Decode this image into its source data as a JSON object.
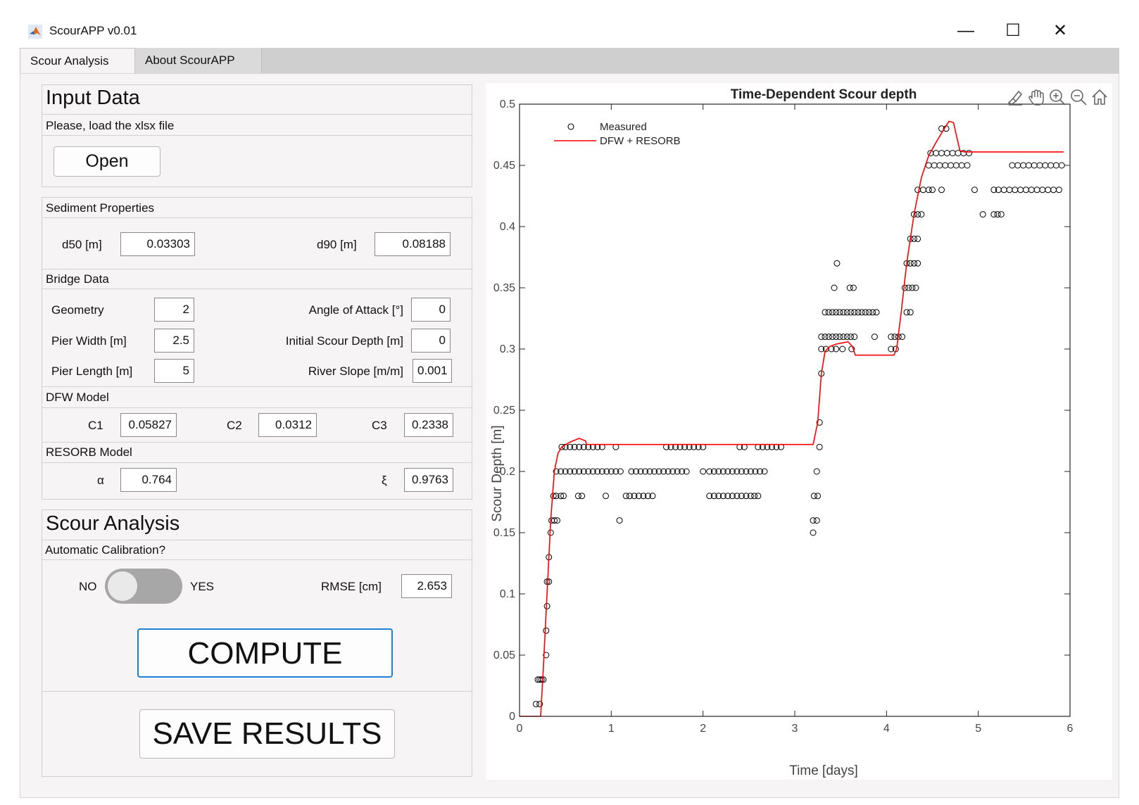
{
  "window": {
    "title": "ScourAPP v0.01",
    "controls": {
      "minimize": "—",
      "maximize": "☐",
      "close": "✕"
    }
  },
  "tabs": [
    {
      "label": "Scour Analysis",
      "active": true
    },
    {
      "label": "About ScourAPP",
      "active": false
    }
  ],
  "input_data": {
    "title": "Input Data",
    "prompt": "Please, load the xlsx file",
    "open_label": "Open"
  },
  "sediment": {
    "title": "Sediment Properties",
    "d50_label": "d50 [m]",
    "d50_value": "0.03303",
    "d90_label": "d90 [m]",
    "d90_value": "0.08188"
  },
  "bridge": {
    "title": "Bridge Data",
    "geometry_label": "Geometry",
    "geometry_value": "2",
    "pier_width_label": "Pier Width [m]",
    "pier_width_value": "2.5",
    "pier_length_label": "Pier Length [m]",
    "pier_length_value": "5",
    "angle_label": "Angle of Attack [°]",
    "angle_value": "0",
    "initial_scour_label": "Initial Scour Depth [m]",
    "initial_scour_value": "0",
    "slope_label": "River Slope [m/m]",
    "slope_value": "0.001"
  },
  "dfw": {
    "title": "DFW Model",
    "c1_label": "C1",
    "c1_value": "0.05827",
    "c2_label": "C2",
    "c2_value": "0.0312",
    "c3_label": "C3",
    "c3_value": "0.2338"
  },
  "resorb": {
    "title": "RESORB Model",
    "alpha_label": "α",
    "alpha_value": "0.764",
    "xi_label": "ξ",
    "xi_value": "0.9763"
  },
  "scour_analysis": {
    "title": "Scour Analysis",
    "auto_label": "Automatic Calibration?",
    "no_label": "NO",
    "yes_label": "YES",
    "toggle_on": false,
    "rmse_label": "RMSE [cm]",
    "rmse_value": "2.653",
    "compute_label": "COMPUTE",
    "save_label": "SAVE RESULTS"
  },
  "chart_data": {
    "type": "line+scatter",
    "title": "Time-Dependent Scour depth",
    "xlabel": "Time [days]",
    "ylabel": "Scour Depth [m]",
    "xlim": [
      0,
      6
    ],
    "ylim": [
      0,
      0.5
    ],
    "xticks": [
      "0",
      "1",
      "2",
      "3",
      "4",
      "5",
      "6"
    ],
    "yticks": [
      "0",
      "0.05",
      "0.1",
      "0.15",
      "0.2",
      "0.25",
      "0.3",
      "0.35",
      "0.4",
      "0.45",
      "0.5"
    ],
    "legend_position": "top-left",
    "grid": false,
    "series": [
      {
        "name": "Measured",
        "kind": "scatter",
        "marker": "open-circle",
        "color": "#000000",
        "groups": [
          {
            "y": 0.01,
            "x": [
              0.18,
              0.22
            ]
          },
          {
            "y": 0.03,
            "x": [
              0.2,
              0.22,
              0.24,
              0.26
            ]
          },
          {
            "y": 0.05,
            "x": [
              0.29
            ]
          },
          {
            "y": 0.07,
            "x": [
              0.29
            ]
          },
          {
            "y": 0.09,
            "x": [
              0.3
            ]
          },
          {
            "y": 0.11,
            "x": [
              0.3,
              0.32
            ]
          },
          {
            "y": 0.13,
            "x": [
              0.32
            ]
          },
          {
            "y": 0.15,
            "x": [
              0.34
            ]
          },
          {
            "y": 0.16,
            "x": [
              0.35,
              0.38,
              0.41,
              1.09,
              3.2,
              3.24
            ]
          },
          {
            "y": 0.15,
            "x": [
              3.2
            ]
          },
          {
            "y": 0.18,
            "x": [
              0.37,
              0.4,
              0.45,
              0.48,
              0.64,
              0.68,
              0.94,
              1.16,
              1.2,
              1.25,
              1.3,
              1.35,
              1.4,
              1.45,
              2.07,
              2.12,
              2.17,
              2.22,
              2.27,
              2.32,
              2.37,
              2.42,
              2.47,
              2.52,
              2.56,
              2.6,
              3.21,
              3.25
            ]
          },
          {
            "y": 0.2,
            "x": [
              0.4,
              0.45,
              0.5,
              0.55,
              0.6,
              0.65,
              0.7,
              0.75,
              0.8,
              0.85,
              0.9,
              0.95,
              1.0,
              1.05,
              1.1,
              1.22,
              1.27,
              1.32,
              1.37,
              1.42,
              1.47,
              1.52,
              1.57,
              1.62,
              1.67,
              1.72,
              1.77,
              1.82,
              2.0,
              2.07,
              2.12,
              2.17,
              2.22,
              2.27,
              2.32,
              2.37,
              2.42,
              2.47,
              2.52,
              2.57,
              2.62,
              2.67,
              3.24
            ]
          },
          {
            "y": 0.22,
            "x": [
              0.46,
              0.5,
              0.55,
              0.6,
              0.65,
              0.7,
              0.75,
              0.8,
              0.85,
              0.9,
              1.05,
              1.6,
              1.65,
              1.7,
              1.75,
              1.8,
              1.85,
              1.9,
              1.95,
              2.0,
              2.4,
              2.45,
              2.6,
              2.65,
              2.7,
              2.75,
              2.8,
              2.85,
              3.27
            ]
          },
          {
            "y": 0.24,
            "x": [
              3.27
            ]
          },
          {
            "y": 0.28,
            "x": [
              3.29
            ]
          },
          {
            "y": 0.3,
            "x": [
              3.29,
              3.34,
              3.4,
              3.45,
              3.52,
              3.62,
              4.05,
              4.1
            ]
          },
          {
            "y": 0.31,
            "x": [
              3.29,
              3.33,
              3.37,
              3.41,
              3.45,
              3.49,
              3.53,
              3.57,
              3.61,
              3.65,
              3.87,
              4.05,
              4.09,
              4.13,
              4.17
            ]
          },
          {
            "y": 0.33,
            "x": [
              3.33,
              3.37,
              3.41,
              3.45,
              3.49,
              3.53,
              3.57,
              3.61,
              3.65,
              3.69,
              3.73,
              3.77,
              3.81,
              3.85,
              3.89,
              4.22,
              4.26
            ]
          },
          {
            "y": 0.35,
            "x": [
              3.43,
              3.6,
              3.64,
              4.2,
              4.24,
              4.28,
              4.32
            ]
          },
          {
            "y": 0.37,
            "x": [
              3.46,
              4.22,
              4.26,
              4.3,
              4.34
            ]
          },
          {
            "y": 0.39,
            "x": [
              4.26,
              4.3,
              4.34
            ]
          },
          {
            "y": 0.41,
            "x": [
              4.3,
              4.34,
              4.38,
              5.05,
              5.17,
              5.21,
              5.25
            ]
          },
          {
            "y": 0.43,
            "x": [
              4.34,
              4.4,
              4.46,
              4.5,
              4.6,
              4.96,
              5.17,
              5.22,
              5.28,
              5.34,
              5.4,
              5.46,
              5.52,
              5.58,
              5.64,
              5.7,
              5.76,
              5.82,
              5.88
            ]
          },
          {
            "y": 0.45,
            "x": [
              4.46,
              4.52,
              4.58,
              4.64,
              4.7,
              4.76,
              4.82,
              4.88,
              5.37,
              5.43,
              5.49,
              5.55,
              5.61,
              5.67,
              5.73,
              5.79,
              5.85,
              5.91
            ]
          },
          {
            "y": 0.46,
            "x": [
              4.48,
              4.54,
              4.6,
              4.66,
              4.72,
              4.78,
              4.84,
              4.9
            ]
          },
          {
            "y": 0.48,
            "x": [
              4.6,
              4.65
            ]
          }
        ]
      },
      {
        "name": "DFW + RESORB",
        "kind": "line",
        "color": "#ff0000",
        "x": [
          0,
          0.23,
          0.26,
          0.3,
          0.34,
          0.38,
          0.42,
          0.46,
          0.55,
          0.65,
          0.72,
          0.73,
          1.5,
          3.2,
          3.25,
          3.29,
          3.33,
          3.38,
          3.45,
          3.52,
          3.58,
          3.63,
          3.66,
          3.7,
          4.08,
          4.11,
          4.16,
          4.22,
          4.3,
          4.38,
          4.46,
          4.55,
          4.63,
          4.68,
          4.73,
          4.76,
          4.8,
          4.85,
          4.9,
          5.1,
          5.93
        ],
        "y": [
          0,
          0,
          0.04,
          0.1,
          0.16,
          0.2,
          0.215,
          0.22,
          0.224,
          0.227,
          0.225,
          0.222,
          0.222,
          0.222,
          0.24,
          0.28,
          0.298,
          0.302,
          0.304,
          0.305,
          0.306,
          0.302,
          0.295,
          0.295,
          0.295,
          0.3,
          0.33,
          0.37,
          0.41,
          0.44,
          0.458,
          0.47,
          0.48,
          0.486,
          0.485,
          0.475,
          0.462,
          0.461,
          0.461,
          0.461,
          0.461
        ]
      }
    ]
  },
  "axes_toolbar": {
    "icons": [
      "brush-icon",
      "pan-icon",
      "zoom-in-icon",
      "zoom-out-icon",
      "home-icon"
    ]
  }
}
